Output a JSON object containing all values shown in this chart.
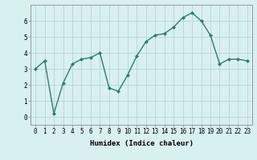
{
  "x": [
    0,
    1,
    2,
    3,
    4,
    5,
    6,
    7,
    8,
    9,
    10,
    11,
    12,
    13,
    14,
    15,
    16,
    17,
    18,
    19,
    20,
    21,
    22,
    23
  ],
  "y": [
    3.0,
    3.5,
    0.2,
    2.1,
    3.3,
    3.6,
    3.7,
    4.0,
    1.8,
    1.6,
    2.6,
    3.8,
    4.7,
    5.1,
    5.2,
    5.6,
    6.2,
    6.5,
    6.0,
    5.1,
    3.3,
    3.6,
    3.6,
    3.5
  ],
  "line_color": "#2e7d6e",
  "marker": "D",
  "markersize": 2.0,
  "linewidth": 1.0,
  "bg_color": "#d8f0f0",
  "grid_color": "#b8d4d4",
  "xlabel": "Humidex (Indice chaleur)",
  "xlim": [
    -0.5,
    23.5
  ],
  "ylim": [
    -0.5,
    7.0
  ],
  "yticks": [
    0,
    1,
    2,
    3,
    4,
    5,
    6
  ],
  "xtick_labels": [
    "0",
    "1",
    "2",
    "3",
    "4",
    "5",
    "6",
    "7",
    "8",
    "9",
    "10",
    "11",
    "12",
    "13",
    "14",
    "15",
    "16",
    "17",
    "18",
    "19",
    "20",
    "21",
    "22",
    "23"
  ],
  "xlabel_fontsize": 6.5,
  "tick_fontsize": 5.5
}
